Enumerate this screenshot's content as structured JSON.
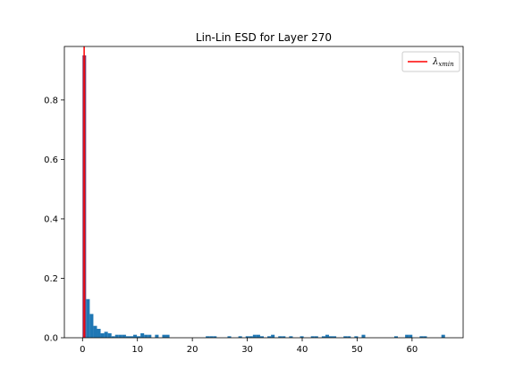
{
  "chart_data": {
    "type": "bar",
    "title": "Lin-Lin ESD for Layer 270",
    "xlabel": "",
    "ylabel": "",
    "xlim": [
      -3.3,
      69.3
    ],
    "ylim": [
      0,
      0.98
    ],
    "xticks": [
      0,
      10,
      20,
      30,
      40,
      50,
      60
    ],
    "yticks": [
      0.0,
      0.2,
      0.4,
      0.6,
      0.8
    ],
    "ytick_labels": [
      "0.0",
      "0.2",
      "0.4",
      "0.6",
      "0.8"
    ],
    "grid": false,
    "bar_color": "#1f77b4",
    "bin_width": 0.66,
    "histogram": {
      "x": [
        0.0,
        0.66,
        1.32,
        1.98,
        2.64,
        3.3,
        3.96,
        4.62,
        5.28,
        5.94,
        6.6,
        7.26,
        7.92,
        8.58,
        9.24,
        9.9,
        10.56,
        11.22,
        11.88,
        13.2,
        14.52,
        15.18,
        22.44,
        23.1,
        23.76,
        26.4,
        28.38,
        29.7,
        30.36,
        31.02,
        31.68,
        32.34,
        33.66,
        34.32,
        35.64,
        36.3,
        37.62,
        39.6,
        41.58,
        42.24,
        43.56,
        44.22,
        44.88,
        45.54,
        47.52,
        48.18,
        49.5,
        50.82,
        56.76,
        58.74,
        59.4,
        61.38,
        62.04,
        65.34
      ],
      "values": [
        0.95,
        0.13,
        0.08,
        0.04,
        0.03,
        0.015,
        0.02,
        0.015,
        0.005,
        0.01,
        0.01,
        0.01,
        0.005,
        0.005,
        0.01,
        0.005,
        0.015,
        0.01,
        0.01,
        0.01,
        0.01,
        0.01,
        0.005,
        0.005,
        0.005,
        0.005,
        0.005,
        0.005,
        0.005,
        0.01,
        0.01,
        0.005,
        0.005,
        0.01,
        0.005,
        0.005,
        0.005,
        0.005,
        0.005,
        0.005,
        0.005,
        0.01,
        0.005,
        0.005,
        0.005,
        0.005,
        0.005,
        0.01,
        0.005,
        0.01,
        0.01,
        0.005,
        0.005,
        0.01
      ]
    },
    "vline": {
      "x": 0.3,
      "color": "#ff0000",
      "label": "λ",
      "label_sub": "xmin"
    },
    "highlight_bar": {
      "x": 0.0,
      "color": "#7f3b6e"
    },
    "legend_placement": "top-right"
  }
}
